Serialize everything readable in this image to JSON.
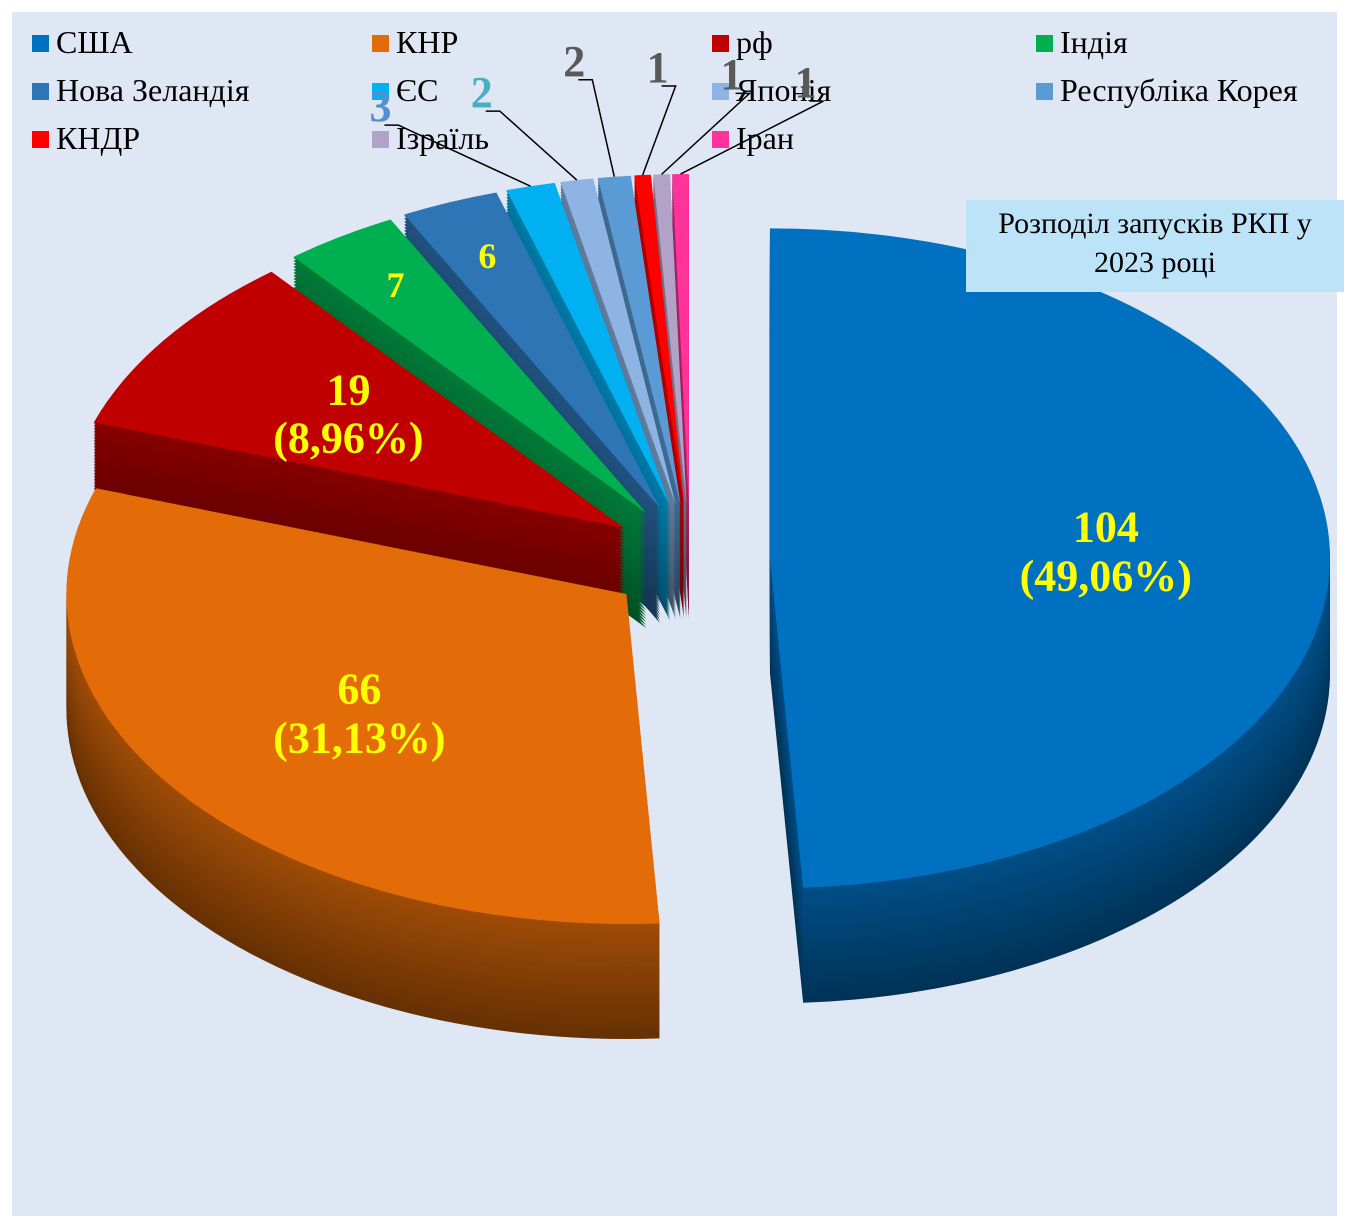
{
  "chart_data": {
    "type": "pie3d",
    "title": "Розподіл запусків РКП у 2023 році",
    "categories": [
      "США",
      "КНР",
      "рф",
      "Індія",
      "Нова Зеландія",
      "ЄС",
      "Японія",
      "Республіка Корея",
      "КНДР",
      "Ізраїль",
      "Іран"
    ],
    "values": [
      104,
      66,
      19,
      7,
      6,
      3,
      2,
      2,
      1,
      1,
      1
    ],
    "value_labels": [
      "104\n(49,06%)",
      "66\n(31,13%)",
      "19\n(8,96%)",
      "7",
      "6",
      "3",
      "2",
      "2",
      "1",
      "1",
      "1"
    ],
    "colors": [
      "#0070c0",
      "#e36c09",
      "#c00000",
      "#00b050",
      "#2e75b6",
      "#00b0f0",
      "#8eb4e3",
      "#5b9bd5",
      "#ff0000",
      "#b3a2c7",
      "#ff3399"
    ],
    "legend": "top"
  }
}
